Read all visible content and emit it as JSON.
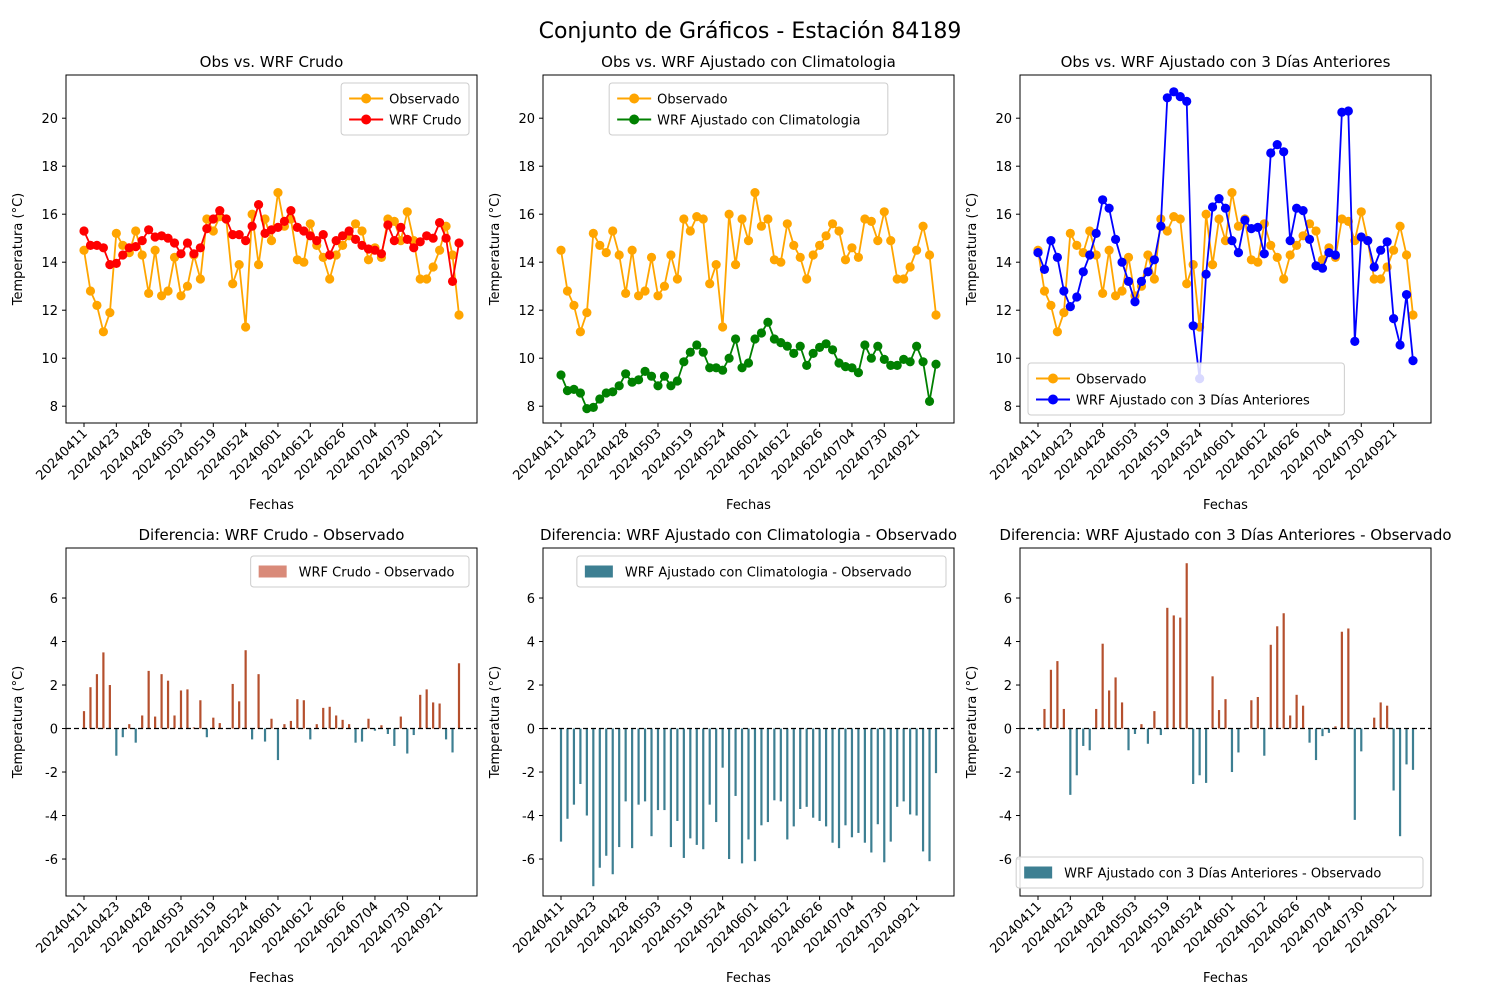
{
  "figure_title": "Conjunto de Gráficos - Estación 84189",
  "xlabel": "Fechas",
  "ylabel": "Temperatura (°C)",
  "colors": {
    "observado": "#FFA500",
    "wrf_crudo": "#FF0000",
    "wrf_clima": "#008000",
    "wrf_3dias": "#0000FF",
    "diff_pos": "#B5502E",
    "diff_neg": "#3D7F92",
    "diff_crudo_legend": "#D98A79",
    "diff_other_legend": "#3D7F92"
  },
  "tick_labels": [
    "20240411",
    "20240423",
    "20240428",
    "20240503",
    "20240519",
    "20240524",
    "20240601",
    "20240612",
    "20240626",
    "20240704",
    "20240730",
    "20240921"
  ],
  "chart_data": [
    {
      "type": "line",
      "title": "Obs vs. WRF Crudo",
      "ylim": [
        7.3,
        21.8
      ],
      "yticks": [
        8,
        10,
        12,
        14,
        16,
        18,
        20
      ],
      "legend_position": "top-right",
      "series": [
        {
          "name": "Observado",
          "color_key": "observado",
          "values": [
            14.5,
            12.8,
            12.2,
            11.1,
            11.9,
            15.2,
            14.7,
            14.4,
            15.3,
            14.3,
            12.7,
            14.5,
            12.6,
            12.8,
            14.2,
            12.6,
            13.0,
            14.3,
            13.3,
            15.8,
            15.3,
            15.9,
            15.8,
            13.1,
            13.9,
            11.3,
            16.0,
            13.9,
            15.8,
            14.9,
            16.9,
            15.5,
            15.8,
            14.1,
            14.0,
            15.6,
            14.7,
            14.2,
            13.3,
            14.3,
            14.7,
            15.1,
            15.6,
            15.3,
            14.1,
            14.6,
            14.2,
            15.8,
            15.7,
            14.9,
            16.1,
            14.9,
            13.3,
            13.3,
            13.8,
            14.5,
            15.5,
            14.3,
            11.8
          ]
        },
        {
          "name": "WRF Crudo",
          "color_key": "wrf_crudo",
          "values": [
            15.3,
            14.7,
            14.7,
            14.6,
            13.9,
            13.95,
            14.3,
            14.6,
            14.65,
            14.9,
            15.35,
            15.05,
            15.1,
            15.0,
            14.8,
            14.35,
            14.8,
            14.35,
            14.6,
            15.4,
            15.8,
            16.15,
            15.8,
            15.15,
            15.15,
            14.9,
            15.5,
            16.4,
            15.2,
            15.35,
            15.45,
            15.7,
            16.15,
            15.45,
            15.3,
            15.1,
            14.9,
            15.15,
            14.3,
            14.9,
            15.1,
            15.3,
            14.95,
            14.7,
            14.55,
            14.5,
            14.35,
            15.55,
            14.9,
            15.45,
            14.95,
            14.6,
            14.85,
            15.1,
            15.0,
            15.65,
            15.0,
            13.2,
            14.8
          ]
        }
      ]
    },
    {
      "type": "line",
      "title": "Obs vs. WRF Ajustado con Climatologia",
      "ylim": [
        7.3,
        21.8
      ],
      "yticks": [
        8,
        10,
        12,
        14,
        16,
        18,
        20
      ],
      "legend_position": "top-center",
      "series": [
        {
          "name": "Observado",
          "color_key": "observado",
          "values": [
            14.5,
            12.8,
            12.2,
            11.1,
            11.9,
            15.2,
            14.7,
            14.4,
            15.3,
            14.3,
            12.7,
            14.5,
            12.6,
            12.8,
            14.2,
            12.6,
            13.0,
            14.3,
            13.3,
            15.8,
            15.3,
            15.9,
            15.8,
            13.1,
            13.9,
            11.3,
            16.0,
            13.9,
            15.8,
            14.9,
            16.9,
            15.5,
            15.8,
            14.1,
            14.0,
            15.6,
            14.7,
            14.2,
            13.3,
            14.3,
            14.7,
            15.1,
            15.6,
            15.3,
            14.1,
            14.6,
            14.2,
            15.8,
            15.7,
            14.9,
            16.1,
            14.9,
            13.3,
            13.3,
            13.8,
            14.5,
            15.5,
            14.3,
            11.8
          ]
        },
        {
          "name": "WRF Ajustado con Climatologia",
          "color_key": "wrf_clima",
          "values": [
            9.3,
            8.65,
            8.7,
            8.55,
            7.9,
            7.95,
            8.3,
            8.55,
            8.6,
            8.85,
            9.35,
            9.0,
            9.1,
            9.45,
            9.25,
            8.85,
            9.25,
            8.85,
            9.05,
            9.85,
            10.25,
            10.55,
            10.25,
            9.6,
            9.6,
            9.5,
            10.0,
            10.8,
            9.6,
            9.8,
            10.8,
            11.05,
            11.5,
            10.8,
            10.65,
            10.5,
            10.2,
            10.5,
            9.7,
            10.2,
            10.45,
            10.6,
            10.35,
            9.8,
            9.65,
            9.6,
            9.4,
            10.55,
            10.0,
            10.5,
            9.95,
            9.7,
            9.7,
            9.95,
            9.85,
            10.5,
            9.85,
            8.2,
            9.75
          ]
        }
      ]
    },
    {
      "type": "line",
      "title": "Obs vs. WRF Ajustado con 3 Días Anteriores",
      "ylim": [
        7.3,
        21.8
      ],
      "yticks": [
        8,
        10,
        12,
        14,
        16,
        18,
        20
      ],
      "legend_position": "bottom-left",
      "series": [
        {
          "name": "Observado",
          "color_key": "observado",
          "values": [
            14.5,
            12.8,
            12.2,
            11.1,
            11.9,
            15.2,
            14.7,
            14.4,
            15.3,
            14.3,
            12.7,
            14.5,
            12.6,
            12.8,
            14.2,
            12.6,
            13.0,
            14.3,
            13.3,
            15.8,
            15.3,
            15.9,
            15.8,
            13.1,
            13.9,
            11.3,
            16.0,
            13.9,
            15.8,
            14.9,
            16.9,
            15.5,
            15.8,
            14.1,
            14.0,
            15.6,
            14.7,
            14.2,
            13.3,
            14.3,
            14.7,
            15.1,
            15.6,
            15.3,
            14.1,
            14.6,
            14.2,
            15.8,
            15.7,
            14.9,
            16.1,
            14.9,
            13.3,
            13.3,
            13.8,
            14.5,
            15.5,
            14.3,
            11.8
          ]
        },
        {
          "name": "WRF Ajustado con 3 Días Anteriores",
          "color_key": "wrf_3dias",
          "values": [
            14.4,
            13.7,
            14.9,
            14.2,
            12.8,
            12.15,
            12.55,
            13.6,
            14.3,
            15.2,
            16.6,
            16.25,
            14.95,
            14.0,
            13.2,
            12.35,
            13.2,
            13.6,
            14.1,
            15.5,
            20.85,
            21.1,
            20.9,
            20.7,
            11.35,
            9.15,
            13.5,
            16.3,
            16.65,
            16.25,
            14.9,
            14.4,
            15.75,
            15.4,
            15.45,
            14.35,
            18.55,
            18.9,
            18.6,
            14.9,
            16.25,
            16.15,
            14.95,
            13.85,
            13.75,
            14.4,
            14.3,
            20.25,
            20.3,
            10.7,
            15.05,
            14.9,
            13.8,
            14.5,
            14.85,
            11.65,
            10.55,
            12.65,
            9.9
          ]
        }
      ]
    },
    {
      "type": "bar",
      "title": "Diferencia: WRF Crudo - Observado",
      "ylim": [
        -7.7,
        8.3
      ],
      "yticks": [
        -6,
        -4,
        -2,
        0,
        2,
        4,
        6
      ],
      "legend_position": "top-right",
      "legend_label": "WRF Crudo - Observado",
      "legend_color_key": "diff_crudo_legend",
      "series_ref": [
        0,
        1
      ]
    },
    {
      "type": "bar",
      "title": "Diferencia: WRF Ajustado con Climatologia - Observado",
      "ylim": [
        -7.7,
        8.3
      ],
      "yticks": [
        -6,
        -4,
        -2,
        0,
        2,
        4,
        6
      ],
      "legend_position": "top-right",
      "legend_label": "WRF Ajustado con Climatologia - Observado",
      "legend_color_key": "diff_other_legend",
      "series_ref": [
        1,
        1
      ]
    },
    {
      "type": "bar",
      "title": "Diferencia: WRF Ajustado con 3 Días Anteriores - Observado",
      "ylim": [
        -7.7,
        8.3
      ],
      "yticks": [
        -6,
        -4,
        -2,
        0,
        2,
        4,
        6
      ],
      "legend_position": "bottom-right",
      "legend_label": "WRF Ajustado con 3 Días Anteriores - Observado",
      "legend_color_key": "diff_other_legend",
      "series_ref": [
        2,
        1
      ]
    }
  ]
}
